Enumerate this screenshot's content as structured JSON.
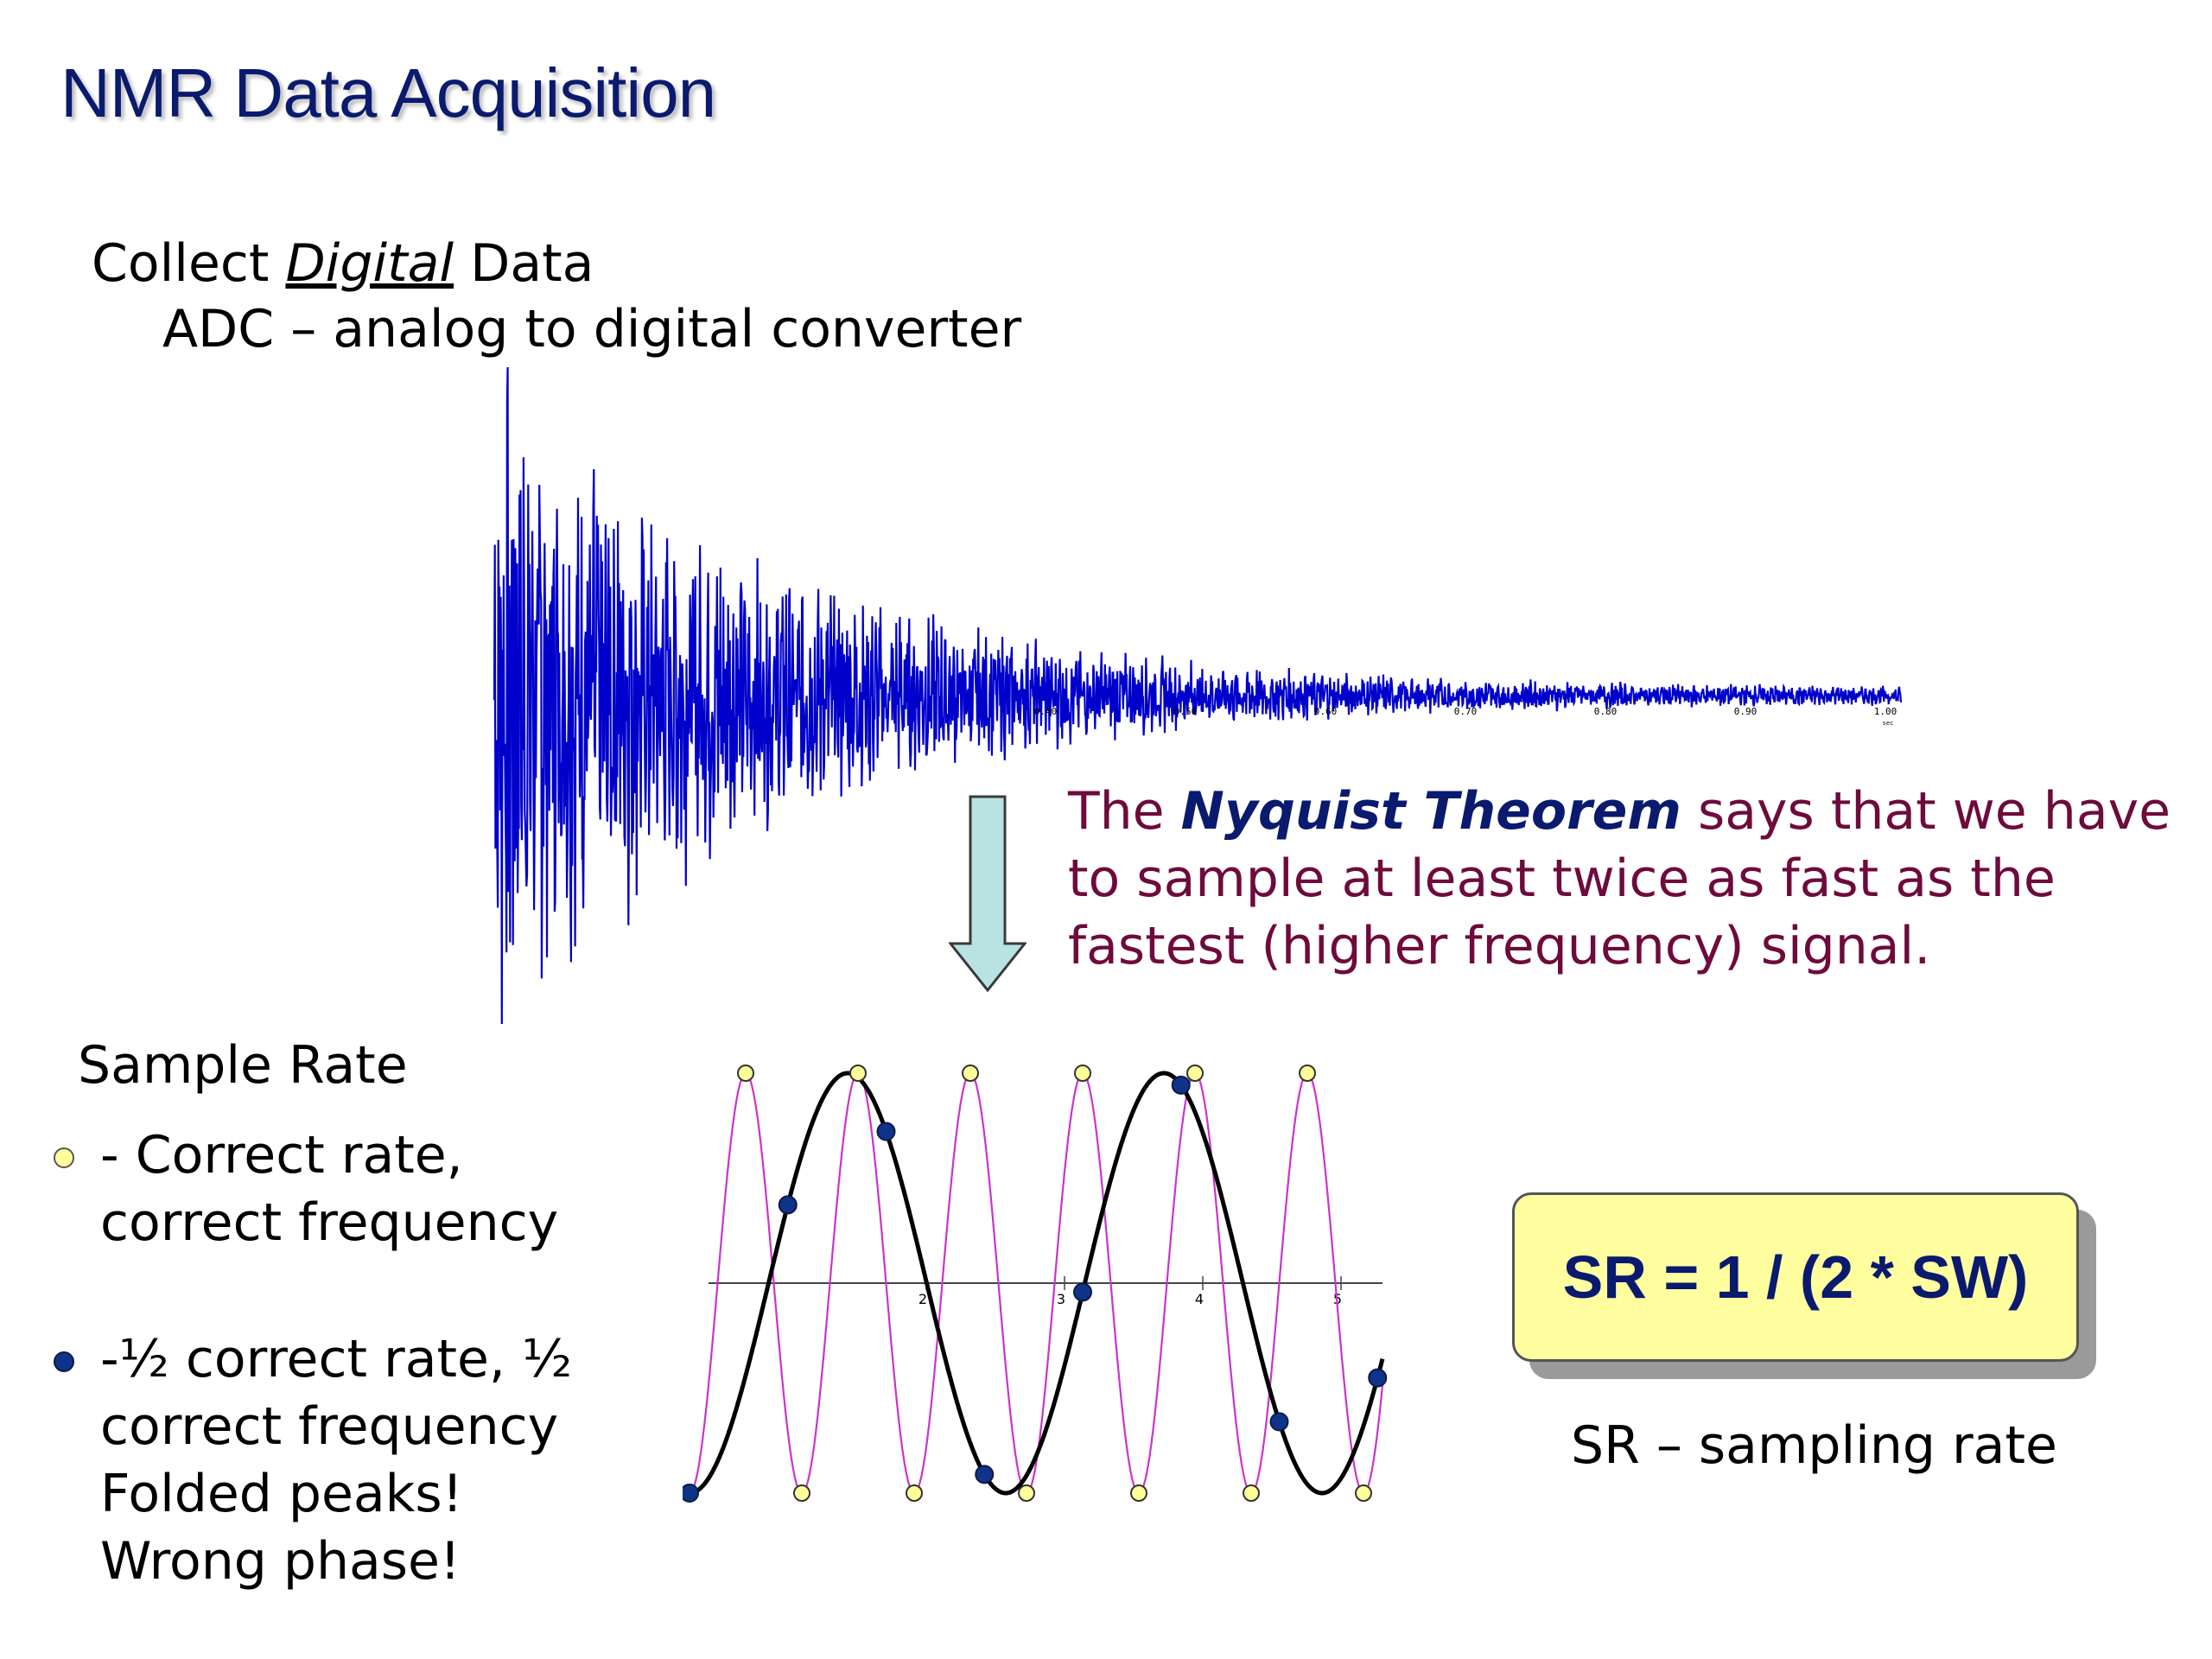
{
  "title": "NMR Data Acquisition",
  "collect": {
    "prefix": "Collect ",
    "emphasis": "Digital",
    "suffix": " Data"
  },
  "adc_line": "ADC – analog to digital converter",
  "fid_axis": {
    "ticks": [
      "0.40",
      "0.50",
      "0.60",
      "0.70",
      "0.80",
      "0.90",
      "1.00"
    ],
    "unit": "sec"
  },
  "nyquist": {
    "before": "The ",
    "term": "Nyquist Theorem",
    "after": " says that we have to sample at least twice as fast as the fastest (higher frequency) signal."
  },
  "sample_rate": {
    "heading": "Sample Rate",
    "correct": [
      "- Correct rate,",
      "correct frequency"
    ],
    "half": [
      "-½ correct rate, ½",
      "correct frequency",
      "Folded peaks!",
      "Wrong phase!"
    ]
  },
  "plot_ticks": [
    "2",
    "3",
    "4",
    "5"
  ],
  "formula": "SR = 1 / (2 * SW)",
  "sr_label": "SR – sampling rate",
  "colors": {
    "title": "#0a1a6e",
    "fid": "#0000cc",
    "nyquist_text": "#6e0a3c",
    "correct_dot": "#ffff99",
    "half_dot": "#10338a",
    "fast_wave": "#cc33cc",
    "slow_wave": "#000000",
    "formula_bg": "#ffffa0"
  }
}
